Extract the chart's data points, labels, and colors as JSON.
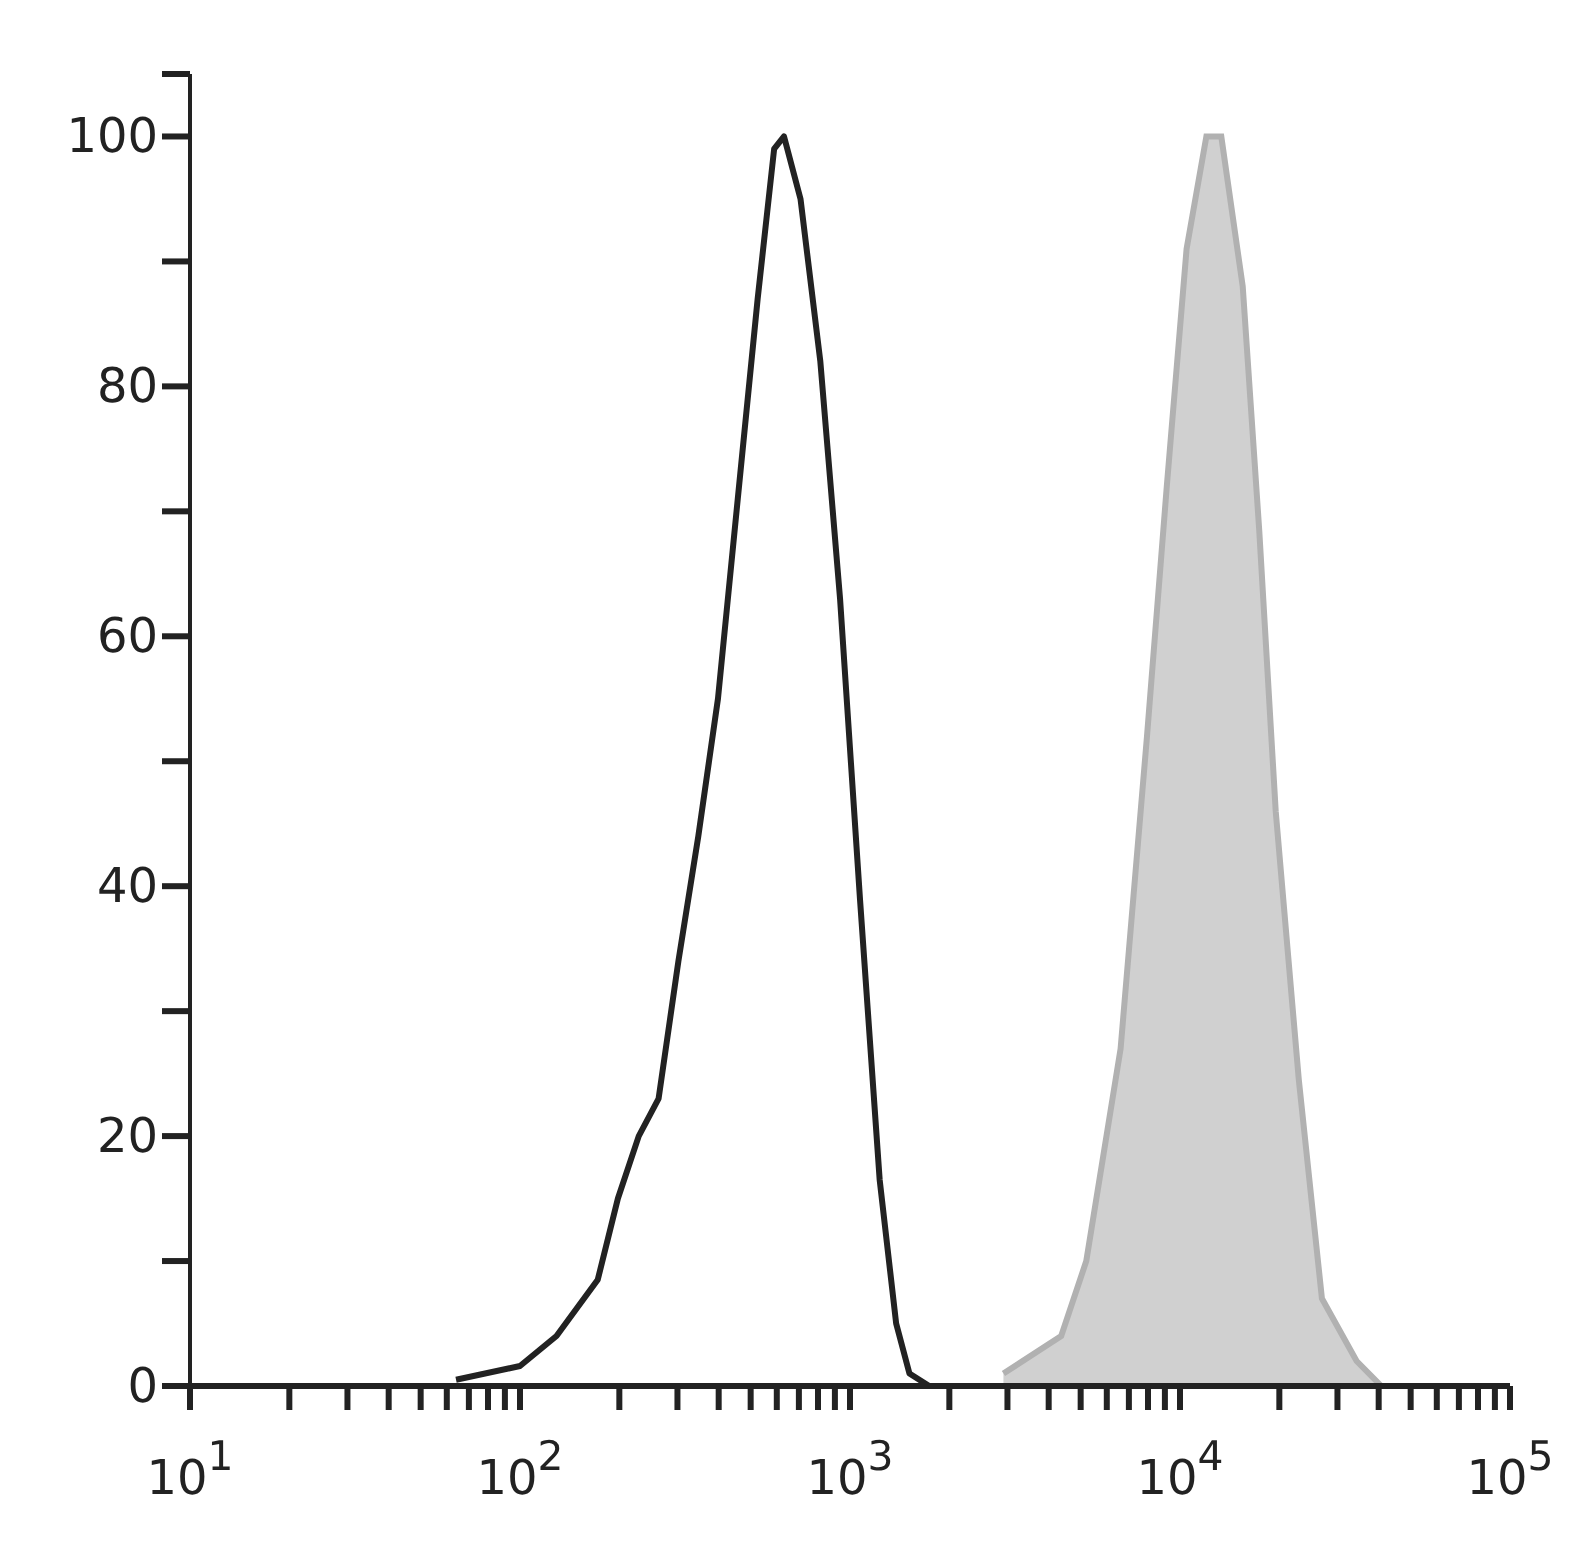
{
  "chart_data": {
    "type": "line",
    "series": [
      {
        "type": "area",
        "color": "#d0d0d0",
        "x": [
          2917,
          4365,
          5200,
          6607,
          7943,
          9120,
          10470,
          12020,
          13340,
          15490,
          17380,
          19500,
          22910,
          26920,
          34280,
          40740
        ],
        "values": [
          1,
          4,
          10,
          27,
          52,
          72,
          91,
          100,
          100,
          88,
          68.5,
          46,
          24.5,
          7,
          2,
          0
        ]
      },
      {
        "color": "#222222",
        "x": [
          64,
          100,
          129,
          172,
          198,
          229,
          263,
          302,
          347,
          398,
          457,
          525,
          589,
          631,
          708,
          813,
          933,
          1072,
          1230,
          1380,
          1514,
          1738
        ],
        "values": [
          0.5,
          1.6,
          4,
          8.5,
          15,
          20,
          23,
          34,
          44,
          55,
          71,
          87,
          99,
          100,
          95,
          82,
          63,
          39,
          16.5,
          5,
          1,
          0
        ]
      }
    ],
    "log": "x",
    "xlim": [
      10,
      100000
    ],
    "xticks": [
      {
        "value": 10,
        "label": "10$^{1}$"
      },
      {
        "value": 20,
        "label": null
      },
      {
        "value": 30,
        "label": null
      },
      {
        "value": 40,
        "label": null
      },
      {
        "value": 50,
        "label": null
      },
      {
        "value": 60,
        "label": null
      },
      {
        "value": 70,
        "label": null
      },
      {
        "value": 80,
        "label": null
      },
      {
        "value": 90,
        "label": null
      },
      {
        "value": 100,
        "label": "10$^{2}$"
      },
      {
        "value": 200,
        "label": null
      },
      {
        "value": 300,
        "label": null
      },
      {
        "value": 400,
        "label": null
      },
      {
        "value": 500,
        "label": null
      },
      {
        "value": 600,
        "label": null
      },
      {
        "value": 700,
        "label": null
      },
      {
        "value": 800,
        "label": null
      },
      {
        "value": 900,
        "label": null
      },
      {
        "value": 1000,
        "label": "10$^{3}$"
      },
      {
        "value": 2000,
        "label": null
      },
      {
        "value": 3000,
        "label": null
      },
      {
        "value": 4000,
        "label": null
      },
      {
        "value": 5000,
        "label": null
      },
      {
        "value": 6000,
        "label": null
      },
      {
        "value": 7000,
        "label": null
      },
      {
        "value": 8000,
        "label": null
      },
      {
        "value": 9000,
        "label": null
      },
      {
        "value": 10000,
        "label": "10$^{4}$"
      },
      {
        "value": 20000,
        "label": null
      },
      {
        "value": 30000,
        "label": null
      },
      {
        "value": 40000,
        "label": null
      },
      {
        "value": 50000,
        "label": null
      },
      {
        "value": 60000,
        "label": null
      },
      {
        "value": 70000,
        "label": null
      },
      {
        "value": 80000,
        "label": null
      },
      {
        "value": 90000,
        "label": null
      },
      {
        "value": 100000,
        "label": "10$^{5}$"
      }
    ],
    "ylim": [
      0,
      105
    ],
    "yticks": [
      0,
      {
        "value": 10,
        "label": null
      },
      20,
      {
        "value": 30,
        "label": null
      },
      40,
      {
        "value": 50,
        "label": null
      },
      60,
      {
        "value": 70,
        "label": null
      },
      80,
      {
        "value": 90,
        "label": null
      },
      100,
      {
        "value": 105,
        "label": null
      }
    ]
  }
}
